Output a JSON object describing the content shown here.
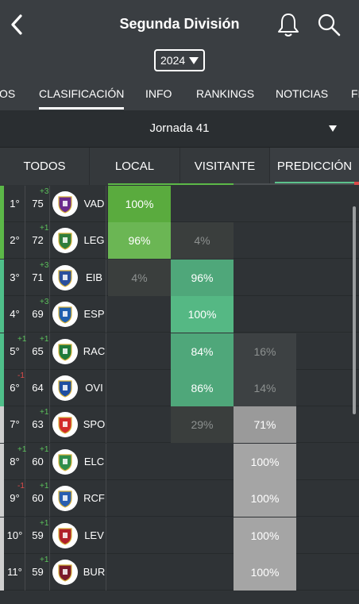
{
  "header": {
    "title": "Segunda División",
    "year": "2024"
  },
  "tabs": [
    {
      "label": "OS",
      "x": -1
    },
    {
      "label": "CLASIFICACIÓN",
      "active": true
    },
    {
      "label": "INFO"
    },
    {
      "label": "RANKINGS"
    },
    {
      "label": "NOTICIAS"
    },
    {
      "label": "FI"
    }
  ],
  "round": {
    "label": "Jornada 41"
  },
  "filters": [
    {
      "label": "TODOS"
    },
    {
      "label": "LOCAL"
    },
    {
      "label": "VISITANTE"
    },
    {
      "label": "PREDICCIÓN",
      "active": true
    }
  ],
  "colors": {
    "promotion": "#5cb848",
    "playoff": "#4fbf8a",
    "neutral": "#cfcfcf",
    "win_strong": "#5aab3e",
    "draw_strong": "#55b884",
    "loss_strong": "#a3a3a3"
  },
  "standings": [
    {
      "pos": "1°",
      "pts": "75",
      "delta": "+3",
      "dir": "up",
      "team": "VAD",
      "zone": "promotion",
      "pred": [
        "100%",
        "",
        ""
      ],
      "shade": [
        "win3",
        "",
        ""
      ]
    },
    {
      "pos": "2°",
      "pts": "72",
      "delta": "+1",
      "dir": "up",
      "team": "LEG",
      "zone": "promotion",
      "pred": [
        "96%",
        "4%",
        ""
      ],
      "shade": [
        "win2",
        "d0",
        ""
      ]
    },
    {
      "pos": "3°",
      "pts": "71",
      "delta": "+3",
      "dir": "up",
      "team": "EIB",
      "zone": "playoff",
      "pred": [
        "4%",
        "96%",
        ""
      ],
      "shade": [
        "w0",
        "draw2",
        ""
      ]
    },
    {
      "pos": "4°",
      "pts": "69",
      "delta": "+3",
      "dir": "up",
      "team": "ESP",
      "zone": "playoff",
      "pred": [
        "",
        "100%",
        ""
      ],
      "shade": [
        "",
        "draw3",
        ""
      ]
    },
    {
      "pos": "5°",
      "pts": "65",
      "delta": "+1",
      "pos_delta": "+1",
      "dir": "up",
      "team": "RAC",
      "zone": "playoff",
      "pred": [
        "",
        "84%",
        "16%"
      ],
      "shade": [
        "",
        "draw2",
        "l0"
      ]
    },
    {
      "pos": "6°",
      "pts": "64",
      "pos_delta": "-1",
      "team": "OVI",
      "zone": "playoff",
      "pred": [
        "",
        "86%",
        "14%"
      ],
      "shade": [
        "",
        "draw2",
        "l0"
      ]
    },
    {
      "pos": "7°",
      "pts": "63",
      "delta": "+1",
      "dir": "up",
      "team": "SPO",
      "zone": "neutral",
      "pred": [
        "",
        "29%",
        "71%"
      ],
      "shade": [
        "",
        "d0",
        "loss2"
      ]
    },
    {
      "pos": "8°",
      "pts": "60",
      "delta": "+1",
      "pos_delta": "+1",
      "dir": "up",
      "team": "ELC",
      "zone": "neutral",
      "pred": [
        "",
        "",
        "100%"
      ],
      "shade": [
        "",
        "",
        "loss3"
      ]
    },
    {
      "pos": "9°",
      "pts": "60",
      "delta": "+1",
      "pos_delta": "-1",
      "dir": "up",
      "team": "RCF",
      "zone": "neutral",
      "pred": [
        "",
        "",
        "100%"
      ],
      "shade": [
        "",
        "",
        "loss3"
      ]
    },
    {
      "pos": "10°",
      "pts": "59",
      "delta": "+1",
      "dir": "up",
      "team": "LEV",
      "zone": "neutral",
      "pred": [
        "",
        "",
        "100%"
      ],
      "shade": [
        "",
        "",
        "loss3"
      ]
    },
    {
      "pos": "11°",
      "pts": "59",
      "delta": "+1",
      "dir": "up",
      "team": "BUR",
      "zone": "neutral",
      "pred": [
        "",
        "",
        "100%"
      ],
      "shade": [
        "",
        "",
        "loss3"
      ]
    }
  ]
}
